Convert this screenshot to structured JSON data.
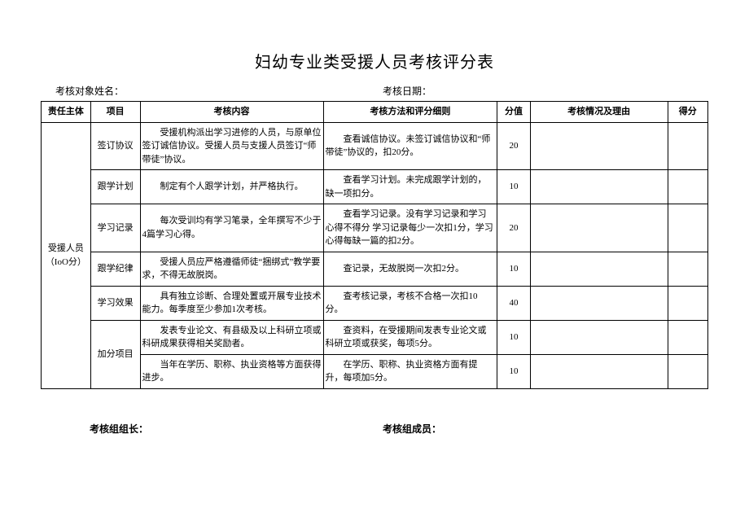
{
  "title": "妇幼专业类受援人员考核评分表",
  "meta": {
    "name_label": "考核对象姓名：",
    "date_label": "考核日期："
  },
  "headers": {
    "subject": "责任主体",
    "item": "项目",
    "content": "考核内容",
    "method": "考核方法和评分细则",
    "score": "分值",
    "status": "考核情况及理由",
    "got": "得分"
  },
  "subject": "受援人员（IoO分）",
  "rows": [
    {
      "item": "签订协议",
      "content": "受援机构派出学习进修的人员，与原单位签订诚信协议。受援人员与支援人员签订“师带徒”协议。",
      "method": "查看诚信协议。未签订诚信协议和“师带徒”协议的，扣20分。",
      "score": "20"
    },
    {
      "item": "跟学计划",
      "content": "制定有个人跟学计划，并严格执行。",
      "method": "查看学习计划。未完成跟学计划的，缺一项扣分。",
      "score": "10"
    },
    {
      "item": "学习记录",
      "content": "每次受训均有学习笔录，全年撰写不少于4篇学习心得。",
      "method": "查看学习记录。没有学习记录和学习心得不得分 学习记录每少一次扣1分，学习心得每缺一篇的扣2分。",
      "score": "20"
    },
    {
      "item": "跟学纪律",
      "content": "受援人员应严格遵循师徒“捆绑式”教学要求，不得无故脱岗。",
      "method": "查记录，无故脱岗一次扣2分。",
      "score": "10"
    },
    {
      "item": "学习效果",
      "content": "具有独立诊断、合理处置或开展专业技术能力。每季度至少参加1次考核。",
      "method": "查考核记录，考核不合格一次扣10分。",
      "score": "40"
    },
    {
      "item": "加分项目",
      "content": "发表专业论文、有县级及以上科研立项或科研成果获得相关奖励者。",
      "method": "查资料，在受援期间发表专业论文或科研立项或获奖，每项5分。",
      "score": "10"
    },
    {
      "item": "",
      "content": "当年在学历、职称、执业资格等方面获得进步。",
      "method": "在学历、职称、执业资格方面有提升，每项加5分。",
      "score": "10"
    }
  ],
  "footer": {
    "leader": "考核组组长：",
    "members": "考核组成员："
  },
  "style": {
    "font_family": "SimSun",
    "title_fontsize": 20,
    "cell_fontsize": 11,
    "border_color": "#000000",
    "background_color": "#ffffff"
  }
}
